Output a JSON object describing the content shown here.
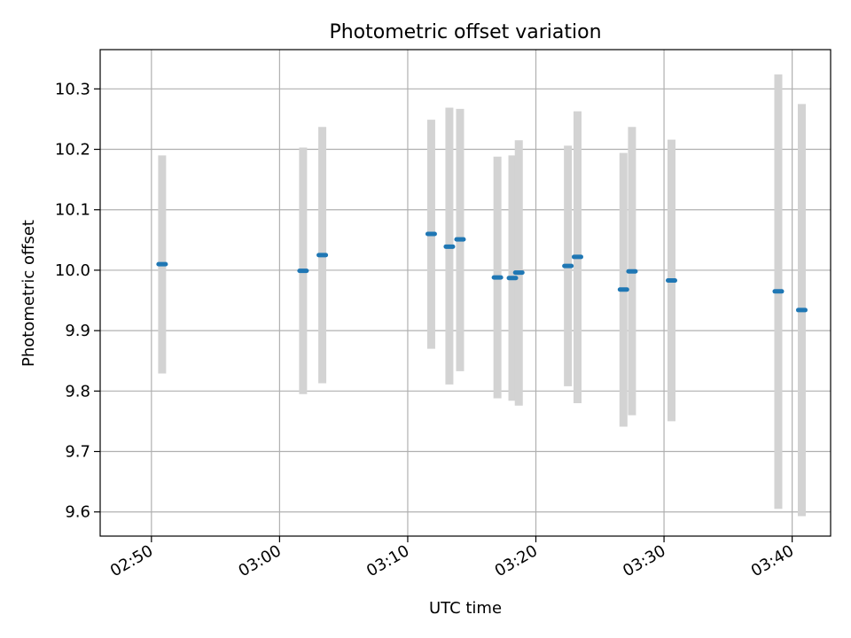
{
  "chart_data": {
    "type": "scatter",
    "title": "Photometric offset variation",
    "xlabel": "UTC time",
    "ylabel": "Photometric offset",
    "xlim": [
      "02:46:00",
      "03:43:00"
    ],
    "ylim": [
      9.56,
      10.365
    ],
    "x_ticks": [
      "02:50",
      "03:00",
      "03:10",
      "03:20",
      "03:30",
      "03:40"
    ],
    "y_ticks": [
      9.6,
      9.7,
      9.8,
      9.9,
      10.0,
      10.1,
      10.2,
      10.3
    ],
    "grid": true,
    "colors": {
      "point": "#1f77b4",
      "errorbar": "#d3d3d3",
      "grid": "#b0b0b0"
    },
    "series": [
      {
        "points": [
          {
            "x": "02:50:50",
            "y": 10.01,
            "low": 9.829,
            "high": 10.19
          },
          {
            "x": "03:01:50",
            "y": 9.999,
            "low": 9.795,
            "high": 10.203
          },
          {
            "x": "03:03:20",
            "y": 10.025,
            "low": 9.813,
            "high": 10.237
          },
          {
            "x": "03:11:50",
            "y": 10.06,
            "low": 9.87,
            "high": 10.249
          },
          {
            "x": "03:13:15",
            "y": 10.039,
            "low": 9.811,
            "high": 10.269
          },
          {
            "x": "03:14:05",
            "y": 10.051,
            "low": 9.833,
            "high": 10.267
          },
          {
            "x": "03:17:00",
            "y": 9.988,
            "low": 9.788,
            "high": 10.188
          },
          {
            "x": "03:18:10",
            "y": 9.987,
            "low": 9.784,
            "high": 10.19
          },
          {
            "x": "03:18:40",
            "y": 9.996,
            "low": 9.776,
            "high": 10.215
          },
          {
            "x": "03:22:30",
            "y": 10.007,
            "low": 9.808,
            "high": 10.206
          },
          {
            "x": "03:23:15",
            "y": 10.022,
            "low": 9.78,
            "high": 10.263
          },
          {
            "x": "03:26:50",
            "y": 9.968,
            "low": 9.741,
            "high": 10.194
          },
          {
            "x": "03:27:30",
            "y": 9.998,
            "low": 9.76,
            "high": 10.237
          },
          {
            "x": "03:30:35",
            "y": 9.983,
            "low": 9.75,
            "high": 10.216
          },
          {
            "x": "03:38:55",
            "y": 9.965,
            "low": 9.605,
            "high": 10.324
          },
          {
            "x": "03:40:45",
            "y": 9.934,
            "low": 9.593,
            "high": 10.275
          }
        ]
      }
    ]
  }
}
